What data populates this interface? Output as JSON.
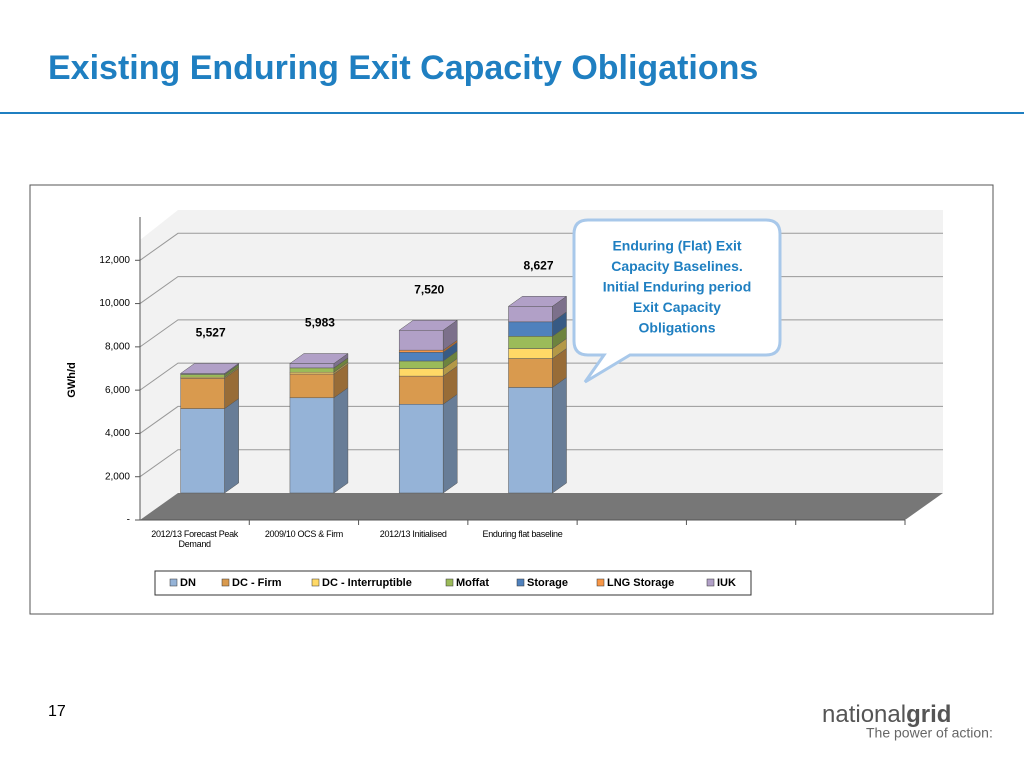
{
  "slide_title": "Existing Enduring Exit Capacity Obligations",
  "page_number": "17",
  "logo": {
    "brand_light": "national",
    "brand_bold": "grid",
    "tagline": "The power of action:"
  },
  "chart_data": {
    "type": "bar3d_stacked",
    "categories": [
      "2012/13 Forecast Peak Demand",
      "2009/10 OCS & Firm",
      "2012/13 Initialised",
      "Enduring flat baseline",
      null,
      null,
      null
    ],
    "series": [
      {
        "name": "DN",
        "color": "#95b3d7",
        "values": [
          3900,
          4400,
          4100,
          4878,
          null,
          null,
          null
        ]
      },
      {
        "name": "DC - Firm",
        "color": "#d99a4e",
        "values": [
          1400,
          1100,
          1300,
          1335,
          null,
          null,
          null
        ]
      },
      {
        "name": "DC - Interruptible",
        "color": "#ffd966",
        "values": [
          50,
          80,
          350,
          462,
          null,
          null,
          null
        ]
      },
      {
        "name": "Moffat",
        "color": "#9bbb59",
        "values": [
          130,
          200,
          350,
          565,
          null,
          null,
          null
        ]
      },
      {
        "name": "Storage",
        "color": "#4f81bd",
        "values": [
          0,
          0,
          400,
          668,
          null,
          null,
          null
        ]
      },
      {
        "name": "LNG Storage",
        "color": "#f79646",
        "values": [
          0,
          0,
          100,
          0,
          null,
          null,
          null
        ]
      },
      {
        "name": "IUK",
        "color": "#b1a0c7",
        "values": [
          47,
          203,
          920,
          719,
          null,
          null,
          null
        ]
      }
    ],
    "totals": [
      5527,
      5983,
      7520,
      8627
    ],
    "total_labels": [
      "5,527",
      "5,983",
      "7,520",
      "8,627"
    ],
    "ylabel": "GWh/d",
    "ylim": [
      0,
      14000
    ],
    "yticks": [
      {
        "value": 0,
        "label": "-"
      },
      {
        "value": 2000,
        "label": "2,000"
      },
      {
        "value": 4000,
        "label": "4,000"
      },
      {
        "value": 6000,
        "label": "6,000"
      },
      {
        "value": 8000,
        "label": "8,000"
      },
      {
        "value": 10000,
        "label": "10,000"
      },
      {
        "value": 12000,
        "label": "12,000"
      }
    ],
    "grid": true,
    "legend": "bottom",
    "callout": [
      "Enduring (Flat) Exit",
      "Capacity Baselines.",
      "Initial Enduring period",
      "Exit Capacity",
      "Obligations"
    ]
  }
}
